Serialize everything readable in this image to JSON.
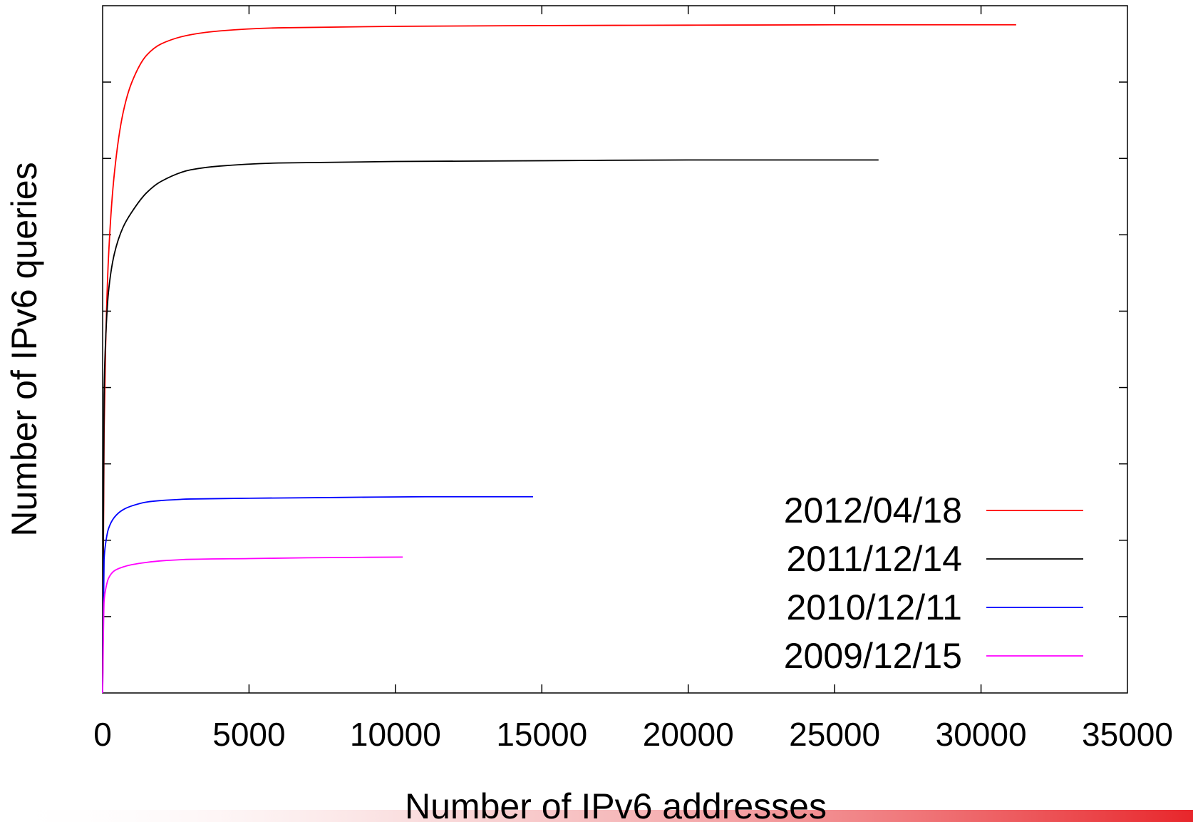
{
  "chart_data": {
    "type": "line",
    "title": "",
    "xlabel": "Number of IPv6 addresses",
    "ylabel": "Number of IPv6 queries",
    "xlim": [
      0,
      35000
    ],
    "ylim": [
      0,
      9
    ],
    "x_ticks": [
      "0",
      "5000",
      "10000",
      "15000",
      "20000",
      "25000",
      "30000",
      "35000"
    ],
    "y_tick_count": 9,
    "y_tick_labels_shown": false,
    "grid": false,
    "legend_position": "bottom-right",
    "series": [
      {
        "name": "2012/04/18",
        "color": "#ff0000",
        "x": [
          0,
          50,
          100,
          200,
          400,
          700,
          1000,
          1500,
          2000,
          3000,
          4000,
          6000,
          10000,
          15000,
          20000,
          25000,
          31200
        ],
        "y": [
          0,
          3.4,
          4.5,
          5.7,
          6.8,
          7.6,
          8.0,
          8.35,
          8.5,
          8.62,
          8.67,
          8.71,
          8.73,
          8.74,
          8.745,
          8.75,
          8.75
        ]
      },
      {
        "name": "2011/12/14",
        "color": "#000000",
        "x": [
          0,
          50,
          100,
          200,
          400,
          700,
          1000,
          1500,
          2000,
          3000,
          4000,
          6000,
          10000,
          15000,
          20000,
          26500
        ],
        "y": [
          0,
          3.9,
          4.6,
          5.25,
          5.75,
          6.1,
          6.3,
          6.55,
          6.7,
          6.85,
          6.9,
          6.94,
          6.96,
          6.97,
          6.98,
          6.98
        ]
      },
      {
        "name": "2010/12/11",
        "color": "#0000ff",
        "x": [
          0,
          50,
          100,
          200,
          400,
          700,
          1000,
          1500,
          2000,
          3000,
          5000,
          8000,
          11000,
          14700
        ],
        "y": [
          0,
          1.75,
          1.95,
          2.15,
          2.3,
          2.4,
          2.45,
          2.5,
          2.52,
          2.54,
          2.55,
          2.56,
          2.57,
          2.57
        ]
      },
      {
        "name": "2009/12/15",
        "color": "#ff00ff",
        "x": [
          0,
          50,
          100,
          200,
          400,
          700,
          1000,
          1500,
          2000,
          3000,
          5000,
          7000,
          10250
        ],
        "y": [
          0,
          1.2,
          1.35,
          1.5,
          1.6,
          1.65,
          1.68,
          1.71,
          1.73,
          1.75,
          1.76,
          1.77,
          1.78
        ]
      }
    ]
  },
  "decor": {
    "bottom_bar_color": "#e8262b"
  }
}
